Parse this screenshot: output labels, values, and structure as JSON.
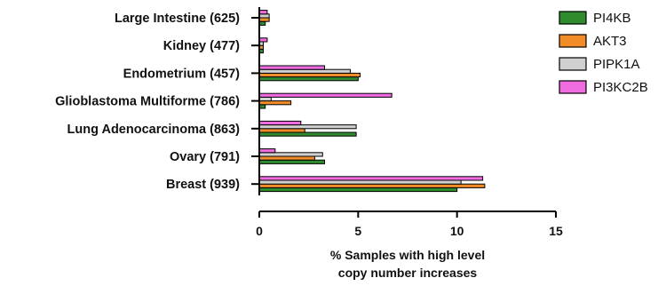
{
  "chart_data": {
    "type": "bar",
    "orientation": "horizontal",
    "categories": [
      "Large Intestine (625)",
      "Kidney (477)",
      "Endometrium (457)",
      "Glioblastoma Multiforme (786)",
      "Lung Adenocarcinoma (863)",
      "Ovary (791)",
      "Breast (939)"
    ],
    "series": [
      {
        "name": "PI4KB",
        "color": "#2e8b2e",
        "values": [
          0.3,
          0.2,
          5.0,
          0.3,
          4.9,
          3.3,
          10.0
        ]
      },
      {
        "name": "AKT3",
        "color": "#f28c28",
        "values": [
          0.5,
          0.2,
          5.1,
          1.6,
          2.3,
          2.8,
          11.4
        ]
      },
      {
        "name": "PIPK1A",
        "color": "#d0d0d0",
        "values": [
          0.5,
          0.2,
          4.6,
          0.6,
          4.9,
          3.2,
          10.2
        ]
      },
      {
        "name": "PI3KC2B",
        "color": "#f06ae0",
        "values": [
          0.4,
          0.4,
          3.3,
          6.7,
          2.1,
          0.8,
          11.3
        ]
      }
    ],
    "xlim": [
      0,
      15
    ],
    "xticks": [
      "0",
      "5",
      "10",
      "15"
    ],
    "xlabel_lines": [
      "% Samples with high level",
      "copy number increases"
    ],
    "legend_position": "top-right",
    "grid": false
  }
}
